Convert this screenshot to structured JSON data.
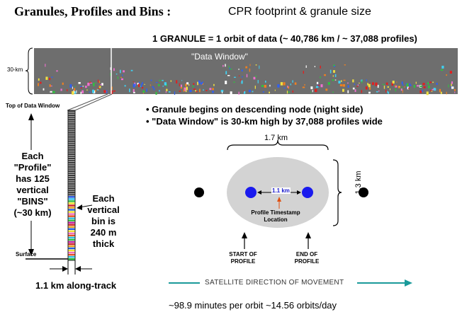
{
  "title": {
    "main": "Granules, Profiles and Bins :",
    "sub": "CPR footprint & granule size"
  },
  "granule_heading": "1 GRANULE = 1 orbit of data (~ 40,786 km  / ~ 37,088 profiles)",
  "data_window": {
    "label": "\"Data Window\"",
    "height_label": "30-km",
    "background_color": "#6e6e6e"
  },
  "bullets": [
    "• Granule begins on descending node (night side)",
    "• \"Data Window\" is 30-km high by 37,088 profiles wide"
  ],
  "profile_column": {
    "top_label": "Top of Data Window",
    "profile_text": "Each \"Profile\" has 125 vertical \"BINS\" (~30 km)",
    "bin_text": "Each vertical bin is 240 m thick",
    "surface_label": "Surface",
    "width_label": "1.1 km along-track"
  },
  "footprint": {
    "width_label": "1.7 km",
    "height_label": "1.3 km",
    "center_spacing_label": "1.1 km",
    "timestamp_label": "Profile Timestamp Location",
    "start_label": "START OF PROFILE",
    "end_label": "END OF PROFILE",
    "ellipse_color": "#d3d3d3",
    "marker_color": "#1a1aee"
  },
  "direction": {
    "label": "SATELLITE DIRECTION OF MOVEMENT",
    "color": "#1a9a9a"
  },
  "orbit_stats": "~98.9 minutes per orbit  ~14.56 orbits/day"
}
